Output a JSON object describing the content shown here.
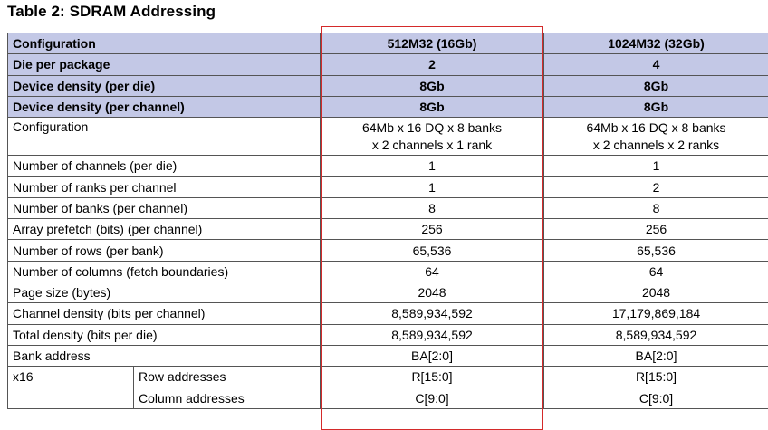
{
  "title": "Table 2: SDRAM Addressing",
  "header_rows": [
    {
      "label": "Configuration",
      "col1": "512M32 (16Gb)",
      "col2": "1024M32 (32Gb)"
    },
    {
      "label": "Die per package",
      "col1": "2",
      "col2": "4"
    },
    {
      "label": "Device density (per die)",
      "col1": "8Gb",
      "col2": "8Gb"
    },
    {
      "label": "Device density (per channel)",
      "col1": "8Gb",
      "col2": "8Gb"
    }
  ],
  "config_row": {
    "label": "Configuration",
    "col1_line1": "64Mb x 16 DQ x 8 banks",
    "col1_line2": "x 2 channels x 1 rank",
    "col2_line1": "64Mb x 16 DQ x 8 banks",
    "col2_line2": "x 2 channels x 2 ranks"
  },
  "rows": [
    {
      "label": "Number of channels (per die)",
      "col1": "1",
      "col2": "1"
    },
    {
      "label": "Number of ranks per channel",
      "col1": "1",
      "col2": "2"
    },
    {
      "label": "Number of banks (per channel)",
      "col1": "8",
      "col2": "8"
    },
    {
      "label": "Array prefetch (bits) (per channel)",
      "col1": "256",
      "col2": "256"
    },
    {
      "label": "Number of rows (per bank)",
      "col1": "65,536",
      "col2": "65,536"
    },
    {
      "label": "Number of columns (fetch boundaries)",
      "col1": "64",
      "col2": "64"
    },
    {
      "label": "Page size (bytes)",
      "col1": "2048",
      "col2": "2048"
    },
    {
      "label": "Channel density (bits per channel)",
      "col1": "8,589,934,592",
      "col2": "17,179,869,184"
    },
    {
      "label": "Total density (bits per die)",
      "col1": "8,589,934,592",
      "col2": "8,589,934,592"
    },
    {
      "label": "Bank address",
      "col1": "BA[2:0]",
      "col2": "BA[2:0]"
    }
  ],
  "x16": {
    "label": "x16",
    "row_addr": {
      "label": "Row addresses",
      "col1": "R[15:0]",
      "col2": "R[15:0]"
    },
    "col_addr": {
      "label": "Column addresses",
      "col1": "C[9:0]",
      "col2": "C[9:0]"
    }
  },
  "highlight_color": "#d42a2a",
  "header_bg": "#c3c8e6"
}
